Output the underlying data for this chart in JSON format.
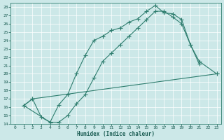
{
  "title": "",
  "xlabel": "Humidex (Indice chaleur)",
  "ylabel": "",
  "background_color": "#cce8e8",
  "line_color": "#2e7d6e",
  "xlim": [
    -0.5,
    23.5
  ],
  "ylim": [
    14,
    28.5
  ],
  "yticks": [
    14,
    15,
    16,
    17,
    18,
    19,
    20,
    21,
    22,
    23,
    24,
    25,
    26,
    27,
    28
  ],
  "xticks": [
    0,
    1,
    2,
    3,
    4,
    5,
    6,
    7,
    8,
    9,
    10,
    11,
    12,
    13,
    14,
    15,
    16,
    17,
    18,
    19,
    20,
    21,
    22,
    23
  ],
  "line1_x": [
    1,
    2,
    3,
    4,
    5,
    6,
    7,
    8,
    9,
    10,
    11,
    12,
    13,
    14,
    15,
    16,
    17,
    18,
    19,
    20,
    21
  ],
  "line1_y": [
    16.2,
    17.0,
    14.8,
    14.2,
    16.3,
    17.5,
    20.0,
    22.2,
    24.0,
    24.5,
    25.2,
    25.5,
    26.2,
    26.6,
    27.5,
    28.2,
    27.3,
    27.2,
    26.5,
    23.5,
    21.2
  ],
  "line2_x": [
    1,
    4,
    5,
    6,
    7,
    8,
    9,
    10,
    11,
    12,
    13,
    14,
    15,
    16,
    17,
    18,
    19,
    20,
    21,
    23
  ],
  "line2_y": [
    16.2,
    14.2,
    14.2,
    15.0,
    16.4,
    17.5,
    19.5,
    21.5,
    22.5,
    23.5,
    24.5,
    25.5,
    26.5,
    27.5,
    27.5,
    26.8,
    26.0,
    23.5,
    21.5,
    20.0
  ],
  "line3_x": [
    1,
    2,
    23
  ],
  "line3_y": [
    16.2,
    17.0,
    20.0
  ]
}
